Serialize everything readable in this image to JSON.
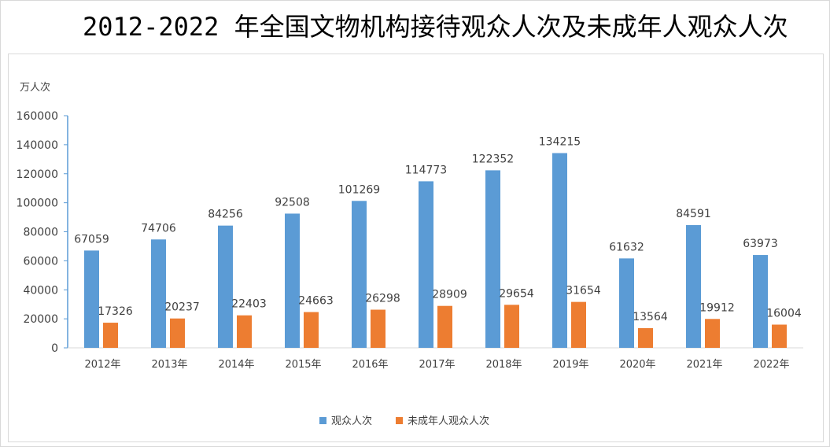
{
  "title": "2012-2022 年全国文物机构接待观众人次及未成年人观众人次",
  "chart_data": {
    "type": "bar",
    "title": "2012-2022 年全国文物机构接待观众人次及未成年人观众人次",
    "ylabel": "万人次",
    "xlabel": "",
    "ylim": [
      0,
      160000
    ],
    "yticks": [
      0,
      20000,
      40000,
      60000,
      80000,
      100000,
      120000,
      140000,
      160000
    ],
    "ytick_labels": [
      "0",
      "20000",
      "40000",
      "60000",
      "80000",
      "100000",
      "120000",
      "140000",
      "160000"
    ],
    "grid": false,
    "legend_position": "bottom",
    "categories": [
      "2012年",
      "2013年",
      "2014年",
      "2015年",
      "2016年",
      "2017年",
      "2018年",
      "2019年",
      "2020年",
      "2021年",
      "2022年"
    ],
    "series": [
      {
        "name": "观众人次",
        "color": "#5b9bd5",
        "values": [
          67059,
          74706,
          84256,
          92508,
          101269,
          114773,
          122352,
          134215,
          61632,
          84591,
          63973
        ]
      },
      {
        "name": "未成年人观众人次",
        "color": "#ed7d31",
        "values": [
          17326,
          20237,
          22403,
          24663,
          26298,
          28909,
          29654,
          31654,
          13564,
          19912,
          16004
        ]
      }
    ],
    "axis_color": "#5b9bd5",
    "text_color": "#404040"
  }
}
